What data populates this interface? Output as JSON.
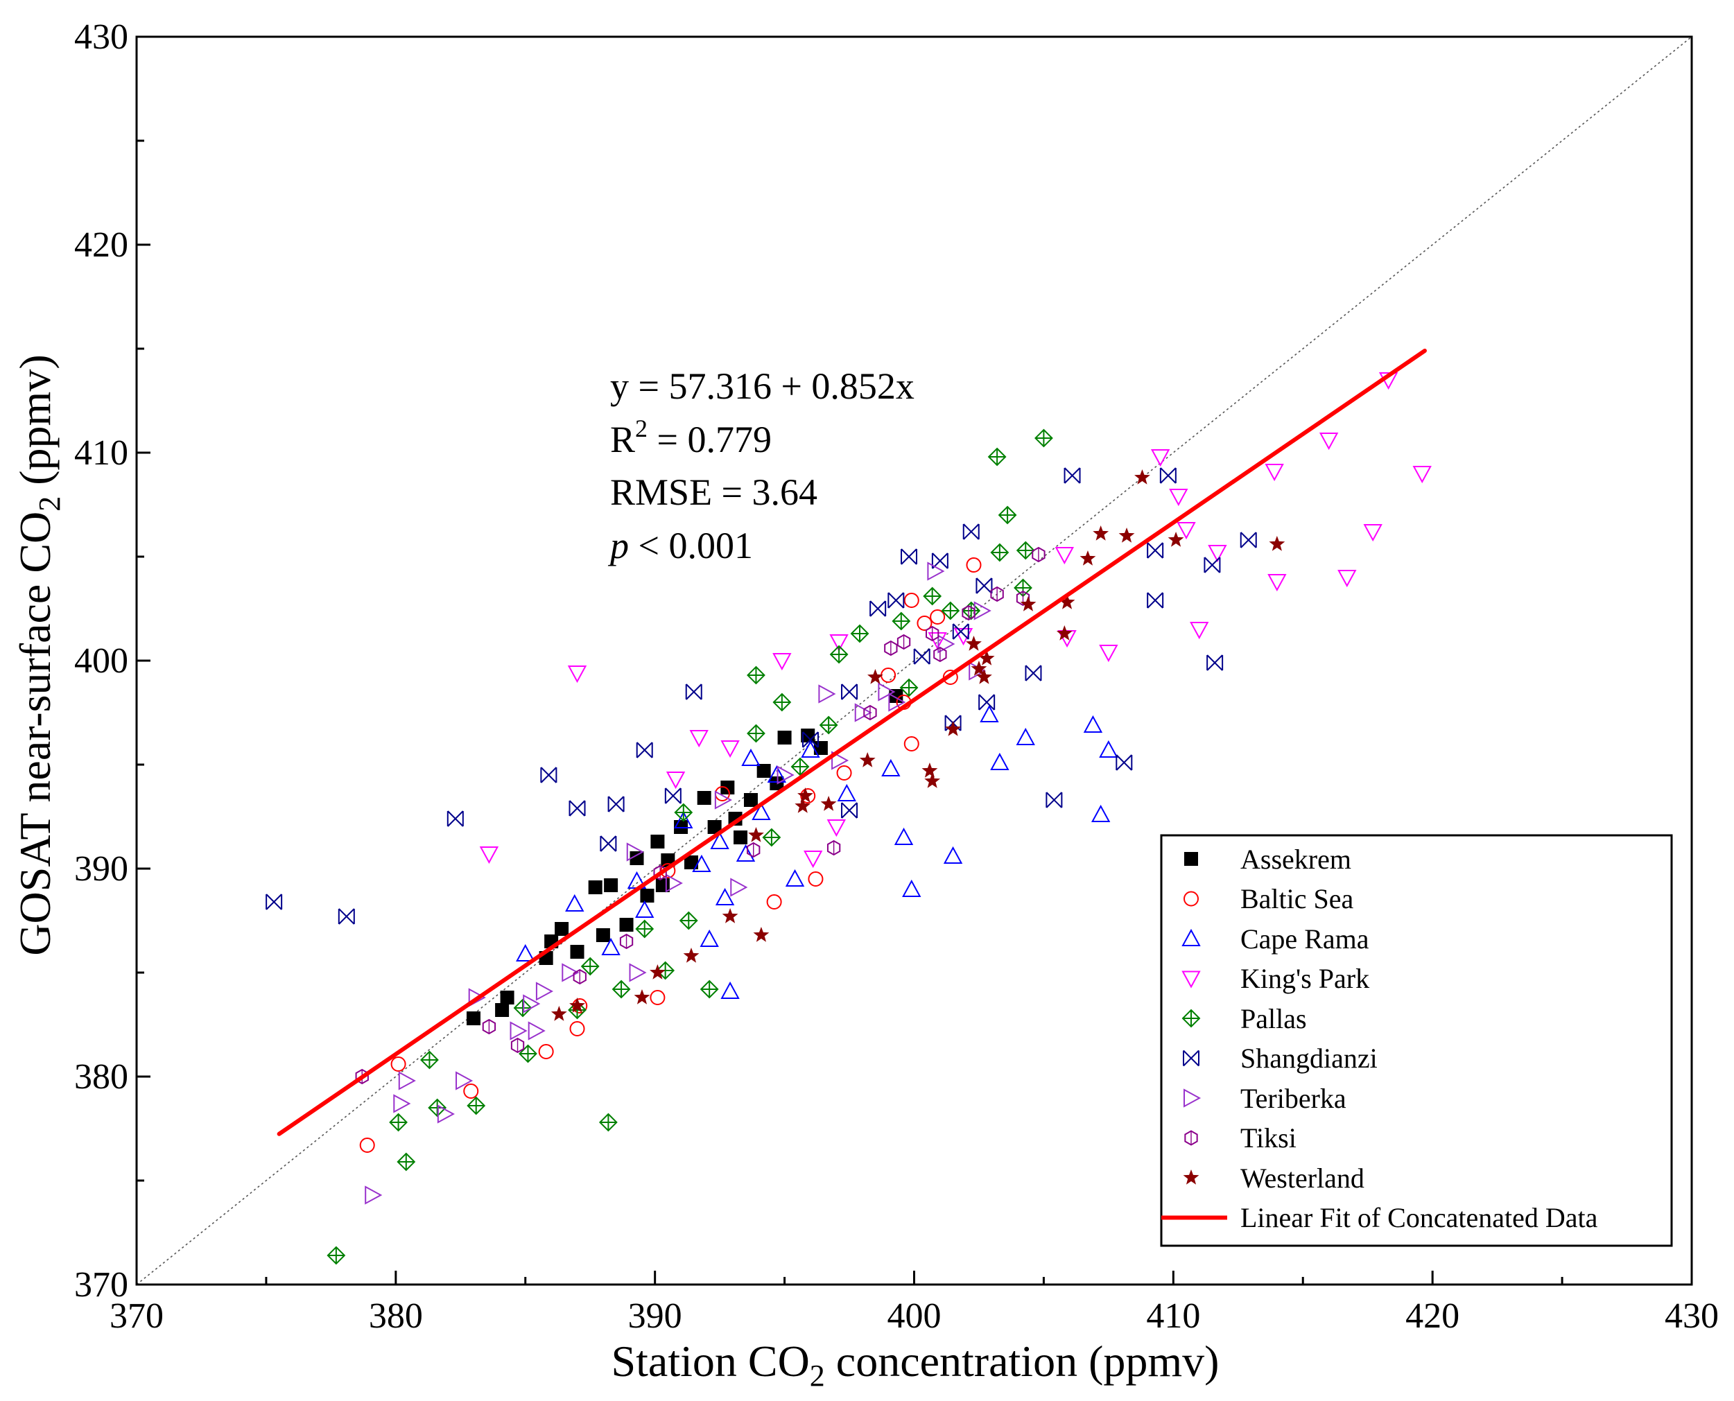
{
  "chart_data": {
    "type": "scatter",
    "x_axis": {
      "title_parts": [
        {
          "text": "Station CO",
          "sub": false
        },
        {
          "text": "2",
          "sub": true
        },
        {
          "text": " concentration (ppmv)",
          "sub": false
        }
      ],
      "range": [
        370,
        430
      ],
      "ticks": [
        370,
        380,
        390,
        400,
        410,
        420,
        430
      ],
      "tick_labels": [
        "370",
        "380",
        "390",
        "400",
        "410",
        "420",
        "430"
      ]
    },
    "y_axis": {
      "title_parts": [
        {
          "text": "GOSAT near-surface CO",
          "sub": false
        },
        {
          "text": "2",
          "sub": true
        },
        {
          "text": " (ppmv)",
          "sub": false
        }
      ],
      "range": [
        370,
        430
      ],
      "ticks": [
        370,
        380,
        390,
        400,
        410,
        420,
        430
      ],
      "tick_labels": [
        "370",
        "380",
        "390",
        "400",
        "410",
        "420",
        "430"
      ]
    },
    "grid": false,
    "reference_line": {
      "name": "1:1 line",
      "style": "dotted",
      "x": [
        370,
        430
      ],
      "y": [
        370,
        430
      ]
    },
    "fit_line": {
      "name": "Linear Fit of Concatenated Data",
      "intercept": 57.316,
      "slope": 0.852,
      "x_range": [
        375.5,
        419.7
      ],
      "color": "#ff0000"
    },
    "annotations": {
      "equation": "y = 57.316 + 0.852x",
      "r2_label": "R",
      "r2_sup": "2",
      "r2_value": " = 0.779",
      "rmse": "RMSE = 3.64",
      "p_symbol": "p",
      "p_value": " < 0.001"
    },
    "legend_position": "bottom-right",
    "series": [
      {
        "name": "Assekrem",
        "marker": "square-filled",
        "color": "#000000",
        "points": [
          [
            383.0,
            382.8
          ],
          [
            384.1,
            383.2
          ],
          [
            384.3,
            383.8
          ],
          [
            385.8,
            385.7
          ],
          [
            386.0,
            386.5
          ],
          [
            386.4,
            387.1
          ],
          [
            387.0,
            386.0
          ],
          [
            387.7,
            389.1
          ],
          [
            388.0,
            386.8
          ],
          [
            388.3,
            389.2
          ],
          [
            388.9,
            387.3
          ],
          [
            389.3,
            390.5
          ],
          [
            389.7,
            388.7
          ],
          [
            390.1,
            391.3
          ],
          [
            390.3,
            389.2
          ],
          [
            390.5,
            390.4
          ],
          [
            391.0,
            392.0
          ],
          [
            391.4,
            390.3
          ],
          [
            391.9,
            393.4
          ],
          [
            392.3,
            392.0
          ],
          [
            392.8,
            393.9
          ],
          [
            393.1,
            392.4
          ],
          [
            393.3,
            391.5
          ],
          [
            393.7,
            393.3
          ],
          [
            394.2,
            394.7
          ],
          [
            394.7,
            394.1
          ],
          [
            395.0,
            396.3
          ],
          [
            395.9,
            396.4
          ],
          [
            396.4,
            395.8
          ],
          [
            399.3,
            398.3
          ]
        ]
      },
      {
        "name": "Baltic Sea",
        "marker": "circle-open",
        "color": "#ff0000",
        "points": [
          [
            378.9,
            376.7
          ],
          [
            380.1,
            380.6
          ],
          [
            382.9,
            379.3
          ],
          [
            385.8,
            381.2
          ],
          [
            387.0,
            382.3
          ],
          [
            387.1,
            383.4
          ],
          [
            390.1,
            383.8
          ],
          [
            390.5,
            389.9
          ],
          [
            392.6,
            393.6
          ],
          [
            394.6,
            388.4
          ],
          [
            395.9,
            393.5
          ],
          [
            396.2,
            389.5
          ],
          [
            397.3,
            394.6
          ],
          [
            399.0,
            399.3
          ],
          [
            399.6,
            398.0
          ],
          [
            399.9,
            396.0
          ],
          [
            399.9,
            402.9
          ],
          [
            400.4,
            401.8
          ],
          [
            400.9,
            402.1
          ],
          [
            401.4,
            399.2
          ],
          [
            402.3,
            404.6
          ]
        ]
      },
      {
        "name": "Cape Rama",
        "marker": "triangle-up-open",
        "color": "#0000ff",
        "points": [
          [
            385.0,
            385.9
          ],
          [
            386.9,
            388.3
          ],
          [
            388.3,
            386.2
          ],
          [
            389.3,
            389.4
          ],
          [
            389.6,
            388.0
          ],
          [
            391.1,
            392.3
          ],
          [
            391.8,
            390.2
          ],
          [
            392.1,
            386.6
          ],
          [
            392.5,
            391.3
          ],
          [
            392.7,
            388.6
          ],
          [
            392.9,
            384.1
          ],
          [
            393.5,
            390.7
          ],
          [
            393.7,
            395.3
          ],
          [
            394.1,
            392.7
          ],
          [
            394.7,
            394.5
          ],
          [
            395.4,
            389.5
          ],
          [
            396.0,
            395.7
          ],
          [
            397.4,
            393.6
          ],
          [
            399.1,
            394.8
          ],
          [
            399.6,
            391.5
          ],
          [
            399.9,
            389.0
          ],
          [
            401.5,
            390.6
          ],
          [
            402.9,
            397.4
          ],
          [
            403.3,
            395.1
          ],
          [
            404.3,
            396.3
          ],
          [
            406.9,
            396.9
          ],
          [
            407.2,
            392.6
          ],
          [
            407.5,
            395.7
          ]
        ]
      },
      {
        "name": "King's Park",
        "marker": "triangle-down-open",
        "color": "#ff00ff",
        "points": [
          [
            383.6,
            390.7
          ],
          [
            387.0,
            399.4
          ],
          [
            390.8,
            394.3
          ],
          [
            391.7,
            396.3
          ],
          [
            392.9,
            395.8
          ],
          [
            394.9,
            400.0
          ],
          [
            396.1,
            390.5
          ],
          [
            397.0,
            392.0
          ],
          [
            397.1,
            400.9
          ],
          [
            400.9,
            401.0
          ],
          [
            401.9,
            401.2
          ],
          [
            405.8,
            405.1
          ],
          [
            405.9,
            401.1
          ],
          [
            407.5,
            400.4
          ],
          [
            409.5,
            409.8
          ],
          [
            410.2,
            407.9
          ],
          [
            410.5,
            406.3
          ],
          [
            411.0,
            401.5
          ],
          [
            411.7,
            405.2
          ],
          [
            413.9,
            409.1
          ],
          [
            414.0,
            403.8
          ],
          [
            416.0,
            410.6
          ],
          [
            416.7,
            404.0
          ],
          [
            417.7,
            406.2
          ],
          [
            418.3,
            413.5
          ],
          [
            419.6,
            409.0
          ]
        ]
      },
      {
        "name": "Pallas",
        "marker": "diamond-plus-open",
        "color": "#008000",
        "points": [
          [
            377.7,
            371.4
          ],
          [
            380.1,
            377.8
          ],
          [
            380.4,
            375.9
          ],
          [
            381.3,
            380.8
          ],
          [
            381.6,
            378.5
          ],
          [
            383.1,
            378.6
          ],
          [
            384.9,
            383.3
          ],
          [
            385.1,
            381.1
          ],
          [
            387.0,
            383.2
          ],
          [
            387.5,
            385.3
          ],
          [
            388.2,
            377.8
          ],
          [
            388.7,
            384.2
          ],
          [
            389.6,
            387.1
          ],
          [
            390.4,
            385.1
          ],
          [
            391.3,
            387.5
          ],
          [
            391.1,
            392.7
          ],
          [
            392.1,
            384.2
          ],
          [
            393.9,
            396.5
          ],
          [
            393.9,
            399.3
          ],
          [
            394.5,
            391.5
          ],
          [
            394.9,
            398.0
          ],
          [
            395.6,
            394.9
          ],
          [
            396.7,
            396.9
          ],
          [
            397.1,
            400.3
          ],
          [
            397.9,
            401.3
          ],
          [
            399.5,
            401.9
          ],
          [
            399.8,
            398.7
          ],
          [
            400.7,
            403.1
          ],
          [
            401.4,
            402.4
          ],
          [
            402.2,
            402.4
          ],
          [
            403.2,
            409.8
          ],
          [
            403.3,
            405.2
          ],
          [
            403.6,
            407.0
          ],
          [
            404.2,
            403.5
          ],
          [
            404.3,
            405.3
          ],
          [
            405.0,
            410.7
          ]
        ]
      },
      {
        "name": "Shangdianzi",
        "marker": "x-bar-open",
        "color": "#00008b",
        "points": [
          [
            375.3,
            388.4
          ],
          [
            378.1,
            387.7
          ],
          [
            382.3,
            392.4
          ],
          [
            385.9,
            394.5
          ],
          [
            387.0,
            392.9
          ],
          [
            388.2,
            391.2
          ],
          [
            388.5,
            393.1
          ],
          [
            389.6,
            395.7
          ],
          [
            390.7,
            393.5
          ],
          [
            391.5,
            398.5
          ],
          [
            396.0,
            396.2
          ],
          [
            397.5,
            392.8
          ],
          [
            397.5,
            398.5
          ],
          [
            398.6,
            402.5
          ],
          [
            399.3,
            402.9
          ],
          [
            399.8,
            405.0
          ],
          [
            400.3,
            400.2
          ],
          [
            401.0,
            404.8
          ],
          [
            401.5,
            397.0
          ],
          [
            401.8,
            401.4
          ],
          [
            402.2,
            406.2
          ],
          [
            402.8,
            398.0
          ],
          [
            402.7,
            403.6
          ],
          [
            404.6,
            399.4
          ],
          [
            405.4,
            393.3
          ],
          [
            406.1,
            408.9
          ],
          [
            408.1,
            395.1
          ],
          [
            409.3,
            402.9
          ],
          [
            409.3,
            405.3
          ],
          [
            409.8,
            408.9
          ],
          [
            411.5,
            404.6
          ],
          [
            411.6,
            399.9
          ],
          [
            412.9,
            405.8
          ]
        ]
      },
      {
        "name": "Teriberka",
        "marker": "triangle-right-open",
        "color": "#9932cc",
        "points": [
          [
            379.1,
            374.3
          ],
          [
            380.2,
            378.7
          ],
          [
            380.4,
            379.8
          ],
          [
            381.9,
            378.2
          ],
          [
            382.6,
            379.8
          ],
          [
            383.1,
            383.8
          ],
          [
            384.7,
            382.2
          ],
          [
            385.2,
            383.5
          ],
          [
            385.4,
            382.2
          ],
          [
            385.7,
            384.1
          ],
          [
            386.7,
            385.0
          ],
          [
            389.2,
            390.8
          ],
          [
            389.3,
            385.0
          ],
          [
            390.7,
            389.3
          ],
          [
            392.6,
            393.3
          ],
          [
            393.2,
            389.1
          ],
          [
            395.0,
            394.5
          ],
          [
            396.6,
            398.4
          ],
          [
            397.1,
            395.2
          ],
          [
            398.0,
            397.5
          ],
          [
            398.9,
            398.5
          ],
          [
            399.3,
            398.0
          ],
          [
            400.8,
            404.3
          ],
          [
            401.2,
            400.8
          ],
          [
            402.4,
            399.5
          ],
          [
            402.6,
            402.4
          ]
        ]
      },
      {
        "name": "Tiksi",
        "marker": "hexagon-open",
        "color": "#8b008b",
        "points": [
          [
            378.7,
            380.0
          ],
          [
            383.6,
            382.4
          ],
          [
            384.7,
            381.5
          ],
          [
            387.1,
            384.8
          ],
          [
            388.9,
            386.5
          ],
          [
            390.2,
            389.8
          ],
          [
            393.8,
            390.9
          ],
          [
            396.9,
            391.0
          ],
          [
            398.3,
            397.5
          ],
          [
            399.1,
            400.6
          ],
          [
            399.6,
            400.9
          ],
          [
            400.7,
            401.3
          ],
          [
            401.0,
            400.3
          ],
          [
            402.1,
            402.3
          ],
          [
            403.2,
            403.2
          ],
          [
            404.2,
            403.0
          ],
          [
            404.8,
            405.1
          ]
        ]
      },
      {
        "name": "Westerland",
        "marker": "star-filled",
        "color": "#8b0000",
        "points": [
          [
            386.3,
            383.0
          ],
          [
            387.0,
            383.4
          ],
          [
            389.5,
            383.8
          ],
          [
            390.1,
            385.0
          ],
          [
            391.4,
            385.8
          ],
          [
            392.9,
            387.7
          ],
          [
            393.9,
            391.6
          ],
          [
            394.1,
            386.8
          ],
          [
            395.7,
            393.0
          ],
          [
            395.8,
            393.5
          ],
          [
            396.7,
            393.1
          ],
          [
            398.2,
            395.2
          ],
          [
            398.5,
            399.2
          ],
          [
            400.6,
            394.7
          ],
          [
            400.7,
            394.2
          ],
          [
            401.5,
            396.7
          ],
          [
            402.3,
            400.8
          ],
          [
            402.5,
            399.6
          ],
          [
            402.7,
            399.2
          ],
          [
            402.8,
            400.1
          ],
          [
            404.4,
            402.7
          ],
          [
            405.8,
            401.3
          ],
          [
            405.9,
            402.8
          ],
          [
            406.7,
            404.9
          ],
          [
            407.2,
            406.1
          ],
          [
            408.2,
            406.0
          ],
          [
            408.8,
            408.8
          ],
          [
            410.1,
            405.8
          ],
          [
            414.0,
            405.6
          ]
        ]
      }
    ]
  }
}
